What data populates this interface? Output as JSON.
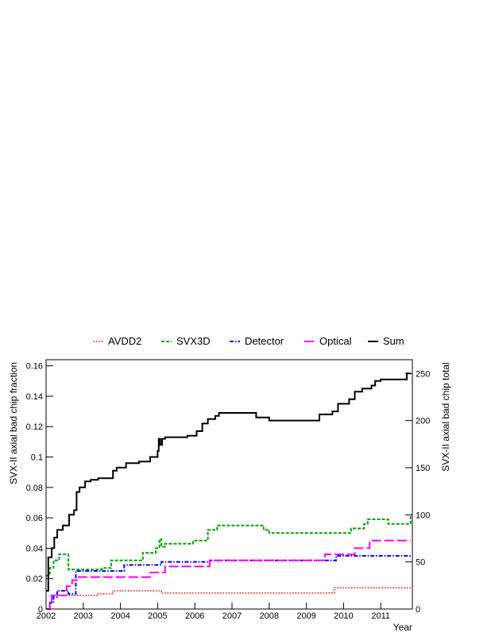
{
  "chart_data": {
    "type": "line",
    "title": "",
    "xlabel": "Year",
    "ylabel": "SVX-II axial bad chip fraction",
    "ylabel_right": "SVX-II axial bad chip total",
    "xlim": [
      2002,
      2011.85
    ],
    "ylim": [
      0,
      0.164
    ],
    "ylim_right": [
      0,
      264.6
    ],
    "x_ticks": [
      2002,
      2003,
      2004,
      2005,
      2006,
      2007,
      2008,
      2009,
      2010,
      2011
    ],
    "y_ticks": [
      0,
      0.02,
      0.04,
      0.06,
      0.08,
      0.1,
      0.12,
      0.14,
      0.16
    ],
    "y_ticks_right": [
      0,
      50,
      100,
      150,
      200,
      250
    ],
    "grid": false,
    "legend_position": "top",
    "series": [
      {
        "name": "AVDD2",
        "color": "#ff0000",
        "style": "dotted",
        "x": [
          2002.0,
          2002.1,
          2002.2,
          2002.8,
          2003.4,
          2003.8,
          2005.0,
          2005.1,
          2009.7,
          2009.75,
          2011.8
        ],
        "y": [
          0,
          0.004,
          0.009,
          0.009,
          0.01,
          0.012,
          0.012,
          0.0105,
          0.0105,
          0.014,
          0.014
        ]
      },
      {
        "name": "SVX3D",
        "color": "#00a000",
        "style": "dashed",
        "x": [
          2002.0,
          2002.1,
          2002.2,
          2002.35,
          2002.6,
          2003.0,
          2003.5,
          2003.75,
          2004.4,
          2004.6,
          2004.95,
          2005.05,
          2005.1,
          2005.2,
          2005.6,
          2005.95,
          2006.1,
          2006.35,
          2006.6,
          2007.6,
          2007.85,
          2008.0,
          2009.6,
          2010.05,
          2010.2,
          2010.55,
          2010.65,
          2011.2,
          2011.7,
          2011.8
        ],
        "y": [
          0.022,
          0.027,
          0.032,
          0.036,
          0.026,
          0.026,
          0.027,
          0.032,
          0.032,
          0.037,
          0.04,
          0.046,
          0.041,
          0.043,
          0.043,
          0.045,
          0.045,
          0.052,
          0.055,
          0.055,
          0.052,
          0.05,
          0.05,
          0.05,
          0.053,
          0.056,
          0.059,
          0.056,
          0.056,
          0.062
        ]
      },
      {
        "name": "Detector",
        "color": "#0000ff",
        "style": "dash-dot",
        "x": [
          2002.0,
          2002.1,
          2002.2,
          2002.3,
          2002.6,
          2002.8,
          2003.3,
          2003.9,
          2004.1,
          2004.6,
          2005.1,
          2006.4,
          2009.0,
          2009.7,
          2009.8,
          2010.7,
          2011.8
        ],
        "y": [
          0,
          0.004,
          0.008,
          0.012,
          0.01,
          0.025,
          0.025,
          0.025,
          0.029,
          0.029,
          0.031,
          0.032,
          0.032,
          0.032,
          0.035,
          0.035,
          0.036
        ]
      },
      {
        "name": "Optical",
        "color": "#ff00ff",
        "style": "long-dash",
        "x": [
          2002.0,
          2002.1,
          2002.15,
          2002.45,
          2002.55,
          2002.7,
          2002.85,
          2003.3,
          2004.3,
          2004.8,
          2005.0,
          2005.2,
          2006.4,
          2009.3,
          2009.5,
          2009.9,
          2010.3,
          2010.5,
          2010.7,
          2011.8
        ],
        "y": [
          0,
          0.004,
          0.009,
          0.009,
          0.015,
          0.019,
          0.021,
          0.021,
          0.021,
          0.024,
          0.024,
          0.028,
          0.032,
          0.032,
          0.036,
          0.036,
          0.04,
          0.04,
          0.045,
          0.045
        ]
      },
      {
        "name": "Sum",
        "color": "#000000",
        "style": "solid",
        "x": [
          2002.0,
          2002.06,
          2002.15,
          2002.22,
          2002.3,
          2002.45,
          2002.62,
          2002.75,
          2002.82,
          2002.9,
          2003.05,
          2003.2,
          2003.4,
          2003.8,
          2003.9,
          2004.15,
          2004.5,
          2004.8,
          2005.0,
          2005.03,
          2005.07,
          2005.12,
          2005.2,
          2005.8,
          2006.05,
          2006.2,
          2006.35,
          2006.55,
          2006.65,
          2007.2,
          2007.65,
          2007.85,
          2008.0,
          2008.5,
          2009.35,
          2009.7,
          2009.85,
          2010.15,
          2010.3,
          2010.5,
          2010.75,
          2010.85,
          2011.0,
          2011.6,
          2011.7,
          2011.8
        ],
        "y": [
          0.012,
          0.034,
          0.04,
          0.047,
          0.052,
          0.055,
          0.062,
          0.065,
          0.077,
          0.08,
          0.084,
          0.085,
          0.086,
          0.091,
          0.093,
          0.096,
          0.097,
          0.1,
          0.104,
          0.112,
          0.108,
          0.112,
          0.113,
          0.114,
          0.117,
          0.122,
          0.125,
          0.127,
          0.129,
          0.129,
          0.126,
          0.126,
          0.124,
          0.124,
          0.128,
          0.13,
          0.135,
          0.138,
          0.143,
          0.145,
          0.147,
          0.15,
          0.151,
          0.151,
          0.155,
          0.155
        ]
      }
    ]
  }
}
